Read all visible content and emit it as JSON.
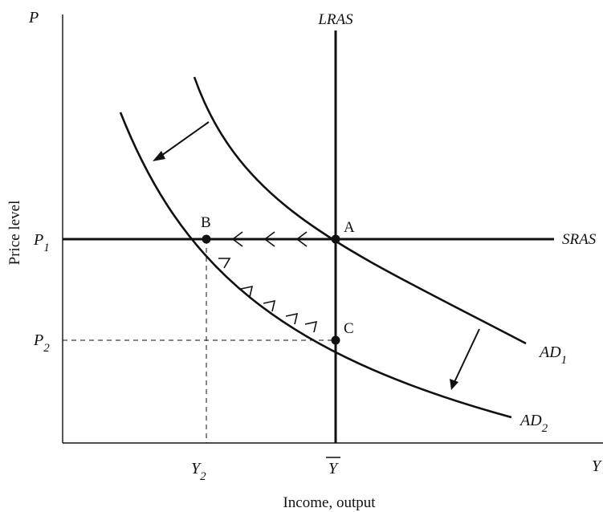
{
  "labels": {
    "p_axis": "P",
    "y_axis": "Y",
    "lras": "LRAS",
    "sras": "SRAS",
    "ad1_main": "AD",
    "ad1_sub": "1",
    "ad2_main": "AD",
    "ad2_sub": "2",
    "p1_main": "P",
    "p1_sub": "1",
    "p2_main": "P",
    "p2_sub": "2",
    "y2_main": "Y",
    "y2_sub": "2",
    "ybar": "Y",
    "point_a": "A",
    "point_b": "B",
    "point_c": "C",
    "x_title": "Income, output",
    "y_title": "Price level"
  }
}
